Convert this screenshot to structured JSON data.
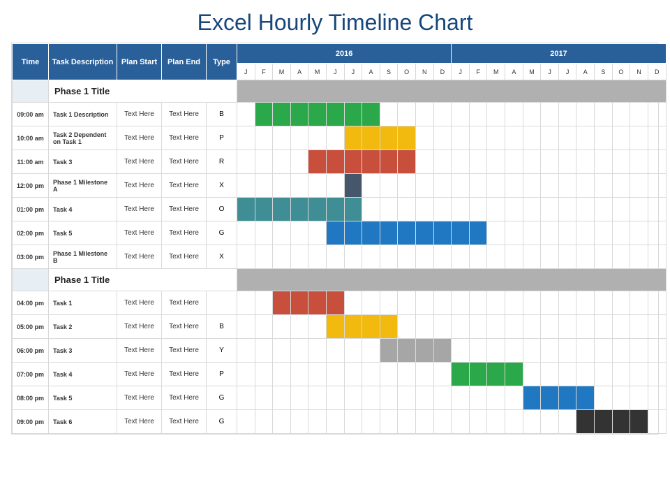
{
  "title": "Excel Hourly Timeline Chart",
  "colors": {
    "header_bg": "#2a6099",
    "header_fg": "#ffffff",
    "phase_bar": "#b0b0b0",
    "phase_time_bg": "#e7eff5",
    "grid": "#d9d9d9",
    "title_color": "#16467a"
  },
  "columns": {
    "time": "Time",
    "desc": "Task Description",
    "plan_start": "Plan Start",
    "plan_end": "Plan End",
    "type": "Type"
  },
  "years": [
    "2016",
    "2017"
  ],
  "months": [
    "J",
    "F",
    "M",
    "A",
    "M",
    "J",
    "J",
    "A",
    "S",
    "O",
    "N",
    "D"
  ],
  "phases": [
    {
      "title": "Phase 1 Title",
      "tasks": [
        {
          "time": "09:00 am",
          "desc": "Task 1 Description",
          "start": "Text Here",
          "end": "Text Here",
          "type": "B",
          "bar": {
            "from": 2,
            "to": 8,
            "color": "#2aa84a"
          }
        },
        {
          "time": "10:00 am",
          "desc": "Task 2 Dependent on Task 1",
          "start": "Text Here",
          "end": "Text Here",
          "type": "P",
          "bar": {
            "from": 7,
            "to": 10,
            "color": "#f2b90f"
          }
        },
        {
          "time": "11:00 am",
          "desc": "Task 3",
          "start": "Text Here",
          "end": "Text Here",
          "type": "R",
          "bar": {
            "from": 5,
            "to": 10,
            "color": "#c94f3d"
          }
        },
        {
          "time": "12:00 pm",
          "desc": "Phase 1 Milestone A",
          "start": "Text Here",
          "end": "Text Here",
          "type": "X",
          "bar": {
            "from": 7,
            "to": 7,
            "color": "#46566b"
          }
        },
        {
          "time": "01:00 pm",
          "desc": "Task 4",
          "start": "Text Here",
          "end": "Text Here",
          "type": "O",
          "bar": {
            "from": 1,
            "to": 7,
            "color": "#3f8d95"
          }
        },
        {
          "time": "02:00 pm",
          "desc": "Task 5",
          "start": "Text Here",
          "end": "Text Here",
          "type": "G",
          "bar": {
            "from": 6,
            "to": 14,
            "color": "#1f78c1"
          }
        },
        {
          "time": "03:00 pm",
          "desc": "Phase 1 Milestone B",
          "start": "Text Here",
          "end": "Text Here",
          "type": "X",
          "bar": null
        }
      ]
    },
    {
      "title": "Phase 1 Title",
      "tasks": [
        {
          "time": "04:00 pm",
          "desc": "Task 1",
          "start": "Text Here",
          "end": "Text Here",
          "type": "",
          "bar": {
            "from": 3,
            "to": 6,
            "color": "#c94f3d"
          }
        },
        {
          "time": "05:00 pm",
          "desc": "Task 2",
          "start": "Text Here",
          "end": "Text Here",
          "type": "B",
          "bar": {
            "from": 6,
            "to": 9,
            "color": "#f2b90f"
          }
        },
        {
          "time": "06:00 pm",
          "desc": "Task 3",
          "start": "Text Here",
          "end": "Text Here",
          "type": "Y",
          "bar": {
            "from": 9,
            "to": 12,
            "color": "#a6a6a6"
          }
        },
        {
          "time": "07:00 pm",
          "desc": "Task 4",
          "start": "Text Here",
          "end": "Text Here",
          "type": "P",
          "bar": {
            "from": 13,
            "to": 16,
            "color": "#2aa84a"
          }
        },
        {
          "time": "08:00 pm",
          "desc": "Task 5",
          "start": "Text Here",
          "end": "Text Here",
          "type": "G",
          "bar": {
            "from": 17,
            "to": 20,
            "color": "#1f78c1"
          }
        },
        {
          "time": "09:00 pm",
          "desc": "Task 6",
          "start": "Text Here",
          "end": "Text Here",
          "type": "G",
          "bar": {
            "from": 20,
            "to": 23,
            "color": "#333333"
          }
        }
      ]
    }
  ]
}
